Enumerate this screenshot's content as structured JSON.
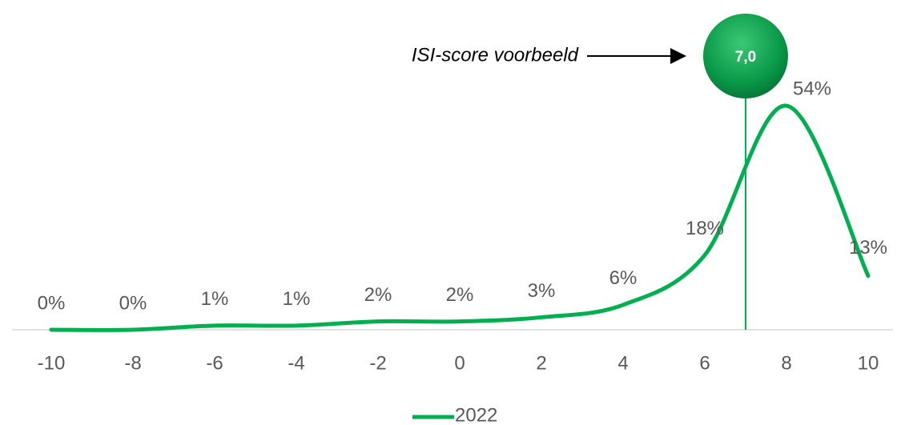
{
  "chart_data": {
    "type": "line",
    "x": [
      -10,
      -8,
      -6,
      -4,
      -2,
      0,
      2,
      4,
      6,
      8,
      10
    ],
    "series": [
      {
        "name": "2022",
        "color": "#00b050",
        "values": [
          0,
          0,
          1,
          1,
          2,
          2,
          3,
          6,
          18,
          54,
          13
        ],
        "value_labels": [
          "0%",
          "0%",
          "1%",
          "1%",
          "2%",
          "2%",
          "3%",
          "6%",
          "18%",
          "54%",
          "13%"
        ]
      }
    ],
    "xlim": [
      -10,
      10
    ],
    "xticks": [
      -10,
      -8,
      -6,
      -4,
      -2,
      0,
      2,
      4,
      6,
      8,
      10
    ],
    "ylim": [
      0,
      60
    ],
    "marker": {
      "value": 7,
      "label": "7,0"
    },
    "annotation": "ISI-score voorbeeld",
    "legend": "bottom"
  }
}
